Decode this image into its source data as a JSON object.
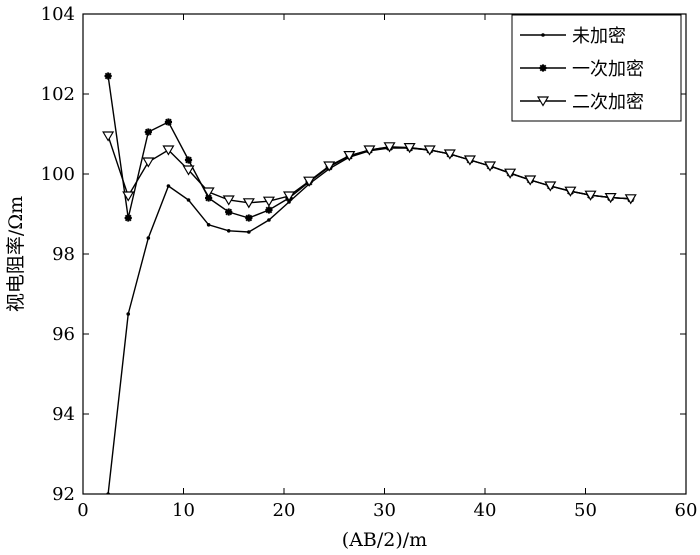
{
  "chart_data": {
    "type": "line",
    "xlabel": "(AB/2)/m",
    "ylabel": "视电阻率/Ωm",
    "xlim": [
      0,
      60
    ],
    "ylim": [
      92,
      104
    ],
    "xticks": [
      0,
      10,
      20,
      30,
      40,
      50,
      60
    ],
    "yticks": [
      92,
      94,
      96,
      98,
      100,
      102,
      104
    ],
    "grid": false,
    "legend_position": "top-right",
    "series": [
      {
        "name": "未加密",
        "marker": "dot",
        "color": "#000000",
        "x": [
          2.5,
          4.5,
          6.5,
          8.5,
          10.5,
          12.5,
          14.5,
          16.5,
          18.5,
          20.5,
          22.5,
          24.5,
          26.5,
          28.5,
          30.5,
          32.5,
          34.5,
          36.5,
          38.5,
          40.5,
          42.5,
          44.5,
          46.5,
          48.5,
          50.5,
          52.5,
          54.5
        ],
        "y": [
          92.0,
          96.5,
          98.4,
          99.7,
          99.35,
          98.73,
          98.58,
          98.55,
          98.85,
          99.3,
          99.75,
          100.13,
          100.42,
          100.58,
          100.65,
          100.65,
          100.6,
          100.5,
          100.35,
          100.2,
          100.02,
          99.85,
          99.7,
          99.57,
          99.47,
          99.41,
          99.38
        ]
      },
      {
        "name": "一次加密",
        "marker": "asterisk",
        "color": "#000000",
        "x": [
          2.5,
          4.5,
          6.5,
          8.5,
          10.5,
          12.5,
          14.5,
          16.5,
          18.5,
          20.5,
          22.5,
          24.5,
          26.5,
          28.5,
          30.5,
          32.5,
          34.5,
          36.5,
          38.5,
          40.5,
          42.5,
          44.5,
          46.5,
          48.5,
          50.5,
          52.5,
          54.5
        ],
        "y": [
          102.45,
          98.9,
          101.05,
          101.3,
          100.35,
          99.4,
          99.05,
          98.9,
          99.1,
          99.4,
          99.8,
          100.18,
          100.45,
          100.6,
          100.67,
          100.65,
          100.6,
          100.5,
          100.35,
          100.2,
          100.02,
          99.85,
          99.7,
          99.57,
          99.47,
          99.41,
          99.38
        ]
      },
      {
        "name": "二次加密",
        "marker": "triangle-down",
        "color": "#000000",
        "x": [
          2.5,
          4.5,
          6.5,
          8.5,
          10.5,
          12.5,
          14.5,
          16.5,
          18.5,
          20.5,
          22.5,
          24.5,
          26.5,
          28.5,
          30.5,
          32.5,
          34.5,
          36.5,
          38.5,
          40.5,
          42.5,
          44.5,
          46.5,
          48.5,
          50.5,
          52.5,
          54.5
        ],
        "y": [
          100.95,
          99.45,
          100.3,
          100.6,
          100.1,
          99.55,
          99.35,
          99.28,
          99.32,
          99.45,
          99.82,
          100.2,
          100.46,
          100.6,
          100.68,
          100.66,
          100.6,
          100.5,
          100.35,
          100.2,
          100.02,
          99.85,
          99.7,
          99.57,
          99.47,
          99.41,
          99.38
        ]
      }
    ]
  }
}
